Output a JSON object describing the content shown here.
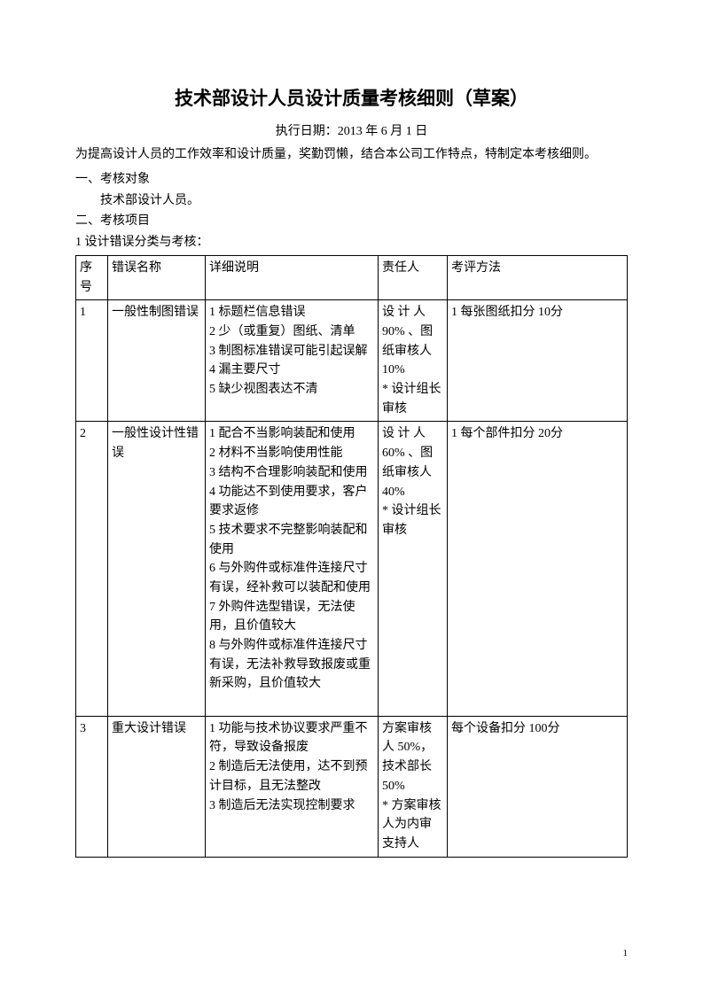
{
  "title": "技术部设计人员设计质量考核细则（草案）",
  "exec_date": "执行日期：2013 年 6 月 1 日",
  "intro": "为提高设计人员的工作效率和设计质量，奖勤罚懒，结合本公司工作特点，特制定本考核细则。",
  "section1_heading": "一、考核对象",
  "section1_body": "技术部设计人员。",
  "section2_heading": "二、考核项目",
  "section2_sub1": "1 设计错误分类与考核：",
  "table": {
    "headers": {
      "seq": "序号",
      "name": "错误名称",
      "detail": "详细说明",
      "resp": "责任人",
      "method": "考评方法"
    },
    "rows": [
      {
        "seq": "1",
        "name": "一般性制图错误",
        "detail": "1 标题栏信息错误\n2 少（或重复）图纸、清单\n3 制图标准错误可能引起误解\n4 漏主要尺寸\n5 缺少视图表达不清",
        "resp": "设 计 人90% 、图纸审核人10%\n* 设计组长审核",
        "method": "1 每张图纸扣分 10分"
      },
      {
        "seq": "2",
        "name": "一般性设计性错误",
        "detail": "1 配合不当影响装配和使用\n2 材料不当影响使用性能\n3 结构不合理影响装配和使用\n4 功能达不到使用要求，客户要求返修\n5 技术要求不完整影响装配和使用\n6 与外购件或标准件连接尺寸有误，经补救可以装配和使用\n7 外购件选型错误，无法使用，且价值较大\n8 与外购件或标准件连接尺寸有误，无法补救导致报废或重新采购，且价值较大\n　",
        "resp": "设 计 人60% 、图纸审核人40%\n* 设计组长审核",
        "method": "1 每个部件扣分 20分"
      },
      {
        "seq": "3",
        "name": "重大设计错误",
        "detail": "1 功能与技术协议要求严重不符，导致设备报废\n2 制造后无法使用，达不到预计目标，且无法整改\n3 制造后无法实现控制要求",
        "resp": "方案审核人 50%，技术部长50%\n* 方案审核人为内审支持人",
        "method": "每个设备扣分 100分"
      }
    ]
  },
  "page_number": "1"
}
